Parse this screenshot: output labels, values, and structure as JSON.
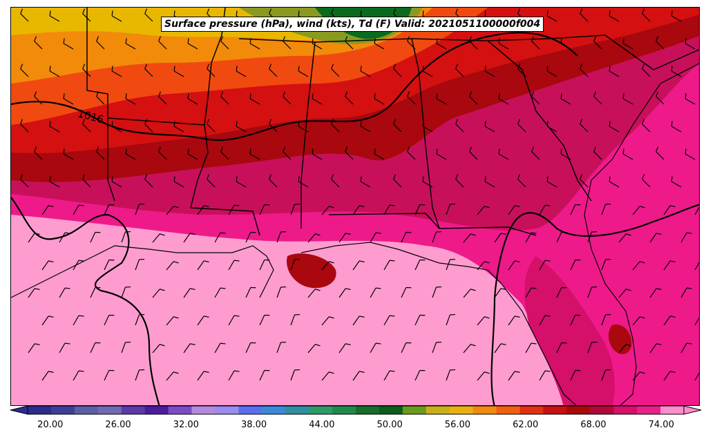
{
  "title": "Surface pressure (hPa), wind (kts), Td (F) Valid: 2021051100000f004",
  "isobar_label": "1016",
  "colorbar": {
    "ticks": [
      "20.00",
      "26.00",
      "32.00",
      "38.00",
      "44.00",
      "50.00",
      "56.00",
      "62.00",
      "68.00",
      "74.00"
    ],
    "colors": [
      "#2b2d8a",
      "#3a3f98",
      "#5a5fa8",
      "#6f6ab5",
      "#5c3aa8",
      "#4b1aa0",
      "#7b4bc8",
      "#b48ae0",
      "#9a8cf0",
      "#5a6ff0",
      "#3a8ad8",
      "#2e8fa0",
      "#2e9a6a",
      "#1f8a4a",
      "#156e2a",
      "#0a5e1a",
      "#6a9a1a",
      "#c8b01a",
      "#e8b010",
      "#f08a10",
      "#f06010",
      "#e03010",
      "#c81010",
      "#a80a0a",
      "#b0083a",
      "#d4106a",
      "#e8208a",
      "#ff8ccc"
    ]
  },
  "colors": {
    "ocean": "#ff9ccf",
    "coast_moist": "#ee1a8a",
    "inland_moist": "#c8105a",
    "dark_red": "#a8080e",
    "red": "#d41010",
    "orange_red": "#f04a10",
    "orange": "#f28a0a",
    "yellow": "#e8b800",
    "olive": "#8a9a20",
    "green": "#0a6a1e"
  }
}
